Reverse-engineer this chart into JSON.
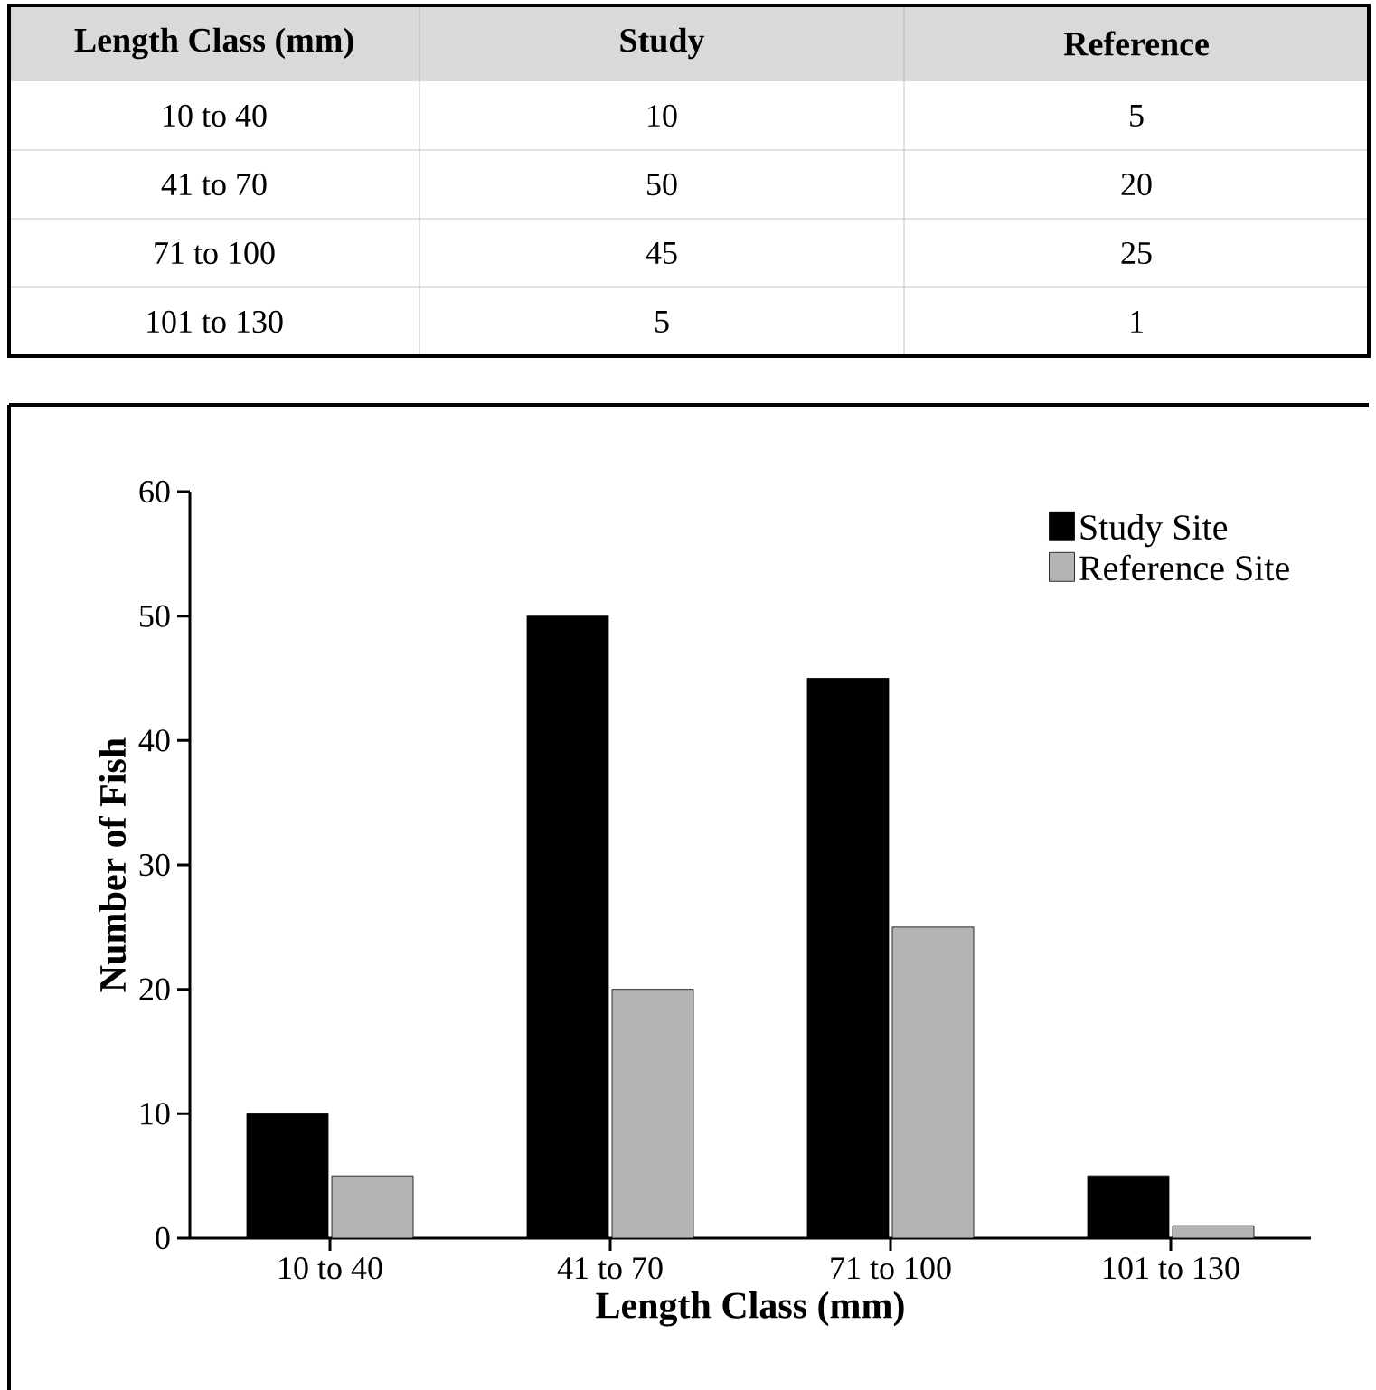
{
  "chart_data": [
    {
      "type": "other",
      "xlabel": "Length Class (mm)",
      "categories": [
        "10 to 40",
        "41 to 70",
        "71 to 100",
        "101 to 130"
      ],
      "series": [
        {
          "name": "Study",
          "values": [
            10,
            50,
            45,
            5
          ],
          "value_labels": [
            "10",
            "50",
            "45",
            "5"
          ]
        },
        {
          "name": "Reference",
          "values": [
            5,
            20,
            25,
            1
          ],
          "value_labels": [
            "5",
            "20",
            "25",
            "1"
          ]
        }
      ]
    },
    {
      "type": "bar",
      "xlabel": "Length Class (mm)",
      "ylabel": "Number of Fish",
      "categories": [
        "10 to 40",
        "41 to 70",
        "71 to 100",
        "101 to 130"
      ],
      "series": [
        {
          "name": "Study Site",
          "color": "#000000",
          "values": [
            10,
            50,
            45,
            5
          ]
        },
        {
          "name": "Reference Site",
          "color": "#b4b4b4",
          "values": [
            5,
            20,
            25,
            1
          ]
        }
      ],
      "ylim": [
        0,
        60
      ],
      "yticks": [
        0,
        10,
        20,
        30,
        40,
        50,
        60
      ],
      "legend": "top right"
    }
  ]
}
